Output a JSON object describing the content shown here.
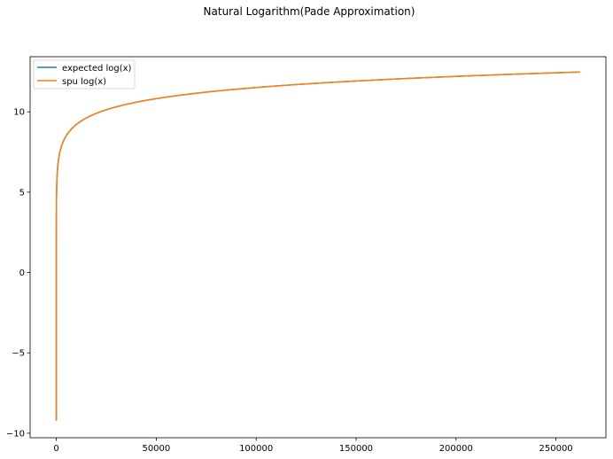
{
  "chart_data": {
    "type": "line",
    "title": "Natural Logarithm(Pade Approximation)",
    "xlabel": "",
    "ylabel": "",
    "xlim": [
      -13100,
      275000
    ],
    "ylim": [
      -10.28,
      13.43
    ],
    "xticks": [
      0,
      50000,
      100000,
      150000,
      200000,
      250000
    ],
    "xtick_labels": [
      "0",
      "50000",
      "100000",
      "150000",
      "200000",
      "250000"
    ],
    "yticks": [
      -10,
      -5,
      0,
      5,
      10
    ],
    "ytick_labels": [
      "−10",
      "−5",
      "0",
      "5",
      "10"
    ],
    "grid": false,
    "legend_position": "top-left",
    "x_domain": [
      0.0001,
      262144
    ],
    "function": "ln(x)",
    "series": [
      {
        "name": "expected log(x)",
        "color": "#1f77b4"
      },
      {
        "name": "spu log(x)",
        "color": "#ff7f0e"
      }
    ]
  }
}
